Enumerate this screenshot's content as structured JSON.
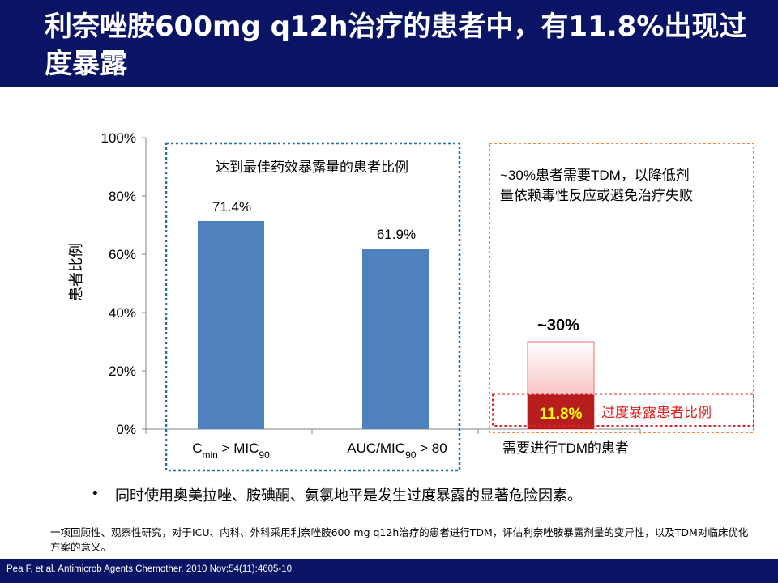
{
  "slide": {
    "title": "利奈唑胺600mg q12h治疗的患者中，有11.8%出现过度暴露",
    "bullet_marker": "•",
    "bullet": "同时使用奥美拉唑、胺碘酮、氨氯地平是发生过度暴露的显著危险因素。",
    "footnote": "一项回顾性、观察性研究，对于ICU、内科、外科采用利奈唑胺600 mg q12h治疗的患者进行TDM，评估利奈唑胺暴露剂量的变异性，以及TDM对临床优化方案的意义。",
    "citation": "Pea F, et al. Antimicrob Agents Chemother. 2010 Nov;54(11):4605-10."
  },
  "chart_data": {
    "type": "bar",
    "ylabel": "患者比例",
    "ylim": [
      0,
      100
    ],
    "yticks": [
      0,
      20,
      40,
      60,
      80,
      100
    ],
    "ytick_labels": [
      "0%",
      "20%",
      "40%",
      "60%",
      "80%",
      "100%"
    ],
    "categories": [
      {
        "label": "C",
        "sub": "min",
        "label_rest": " > MIC",
        "sub2": "90",
        "label_end": ""
      },
      {
        "label": "AUC/MIC",
        "sub": "90",
        "label_rest": " > 80",
        "sub2": "",
        "label_end": ""
      },
      {
        "label": "需要进行TDM的患者",
        "sub": "",
        "label_rest": "",
        "sub2": "",
        "label_end": ""
      }
    ],
    "bars": [
      {
        "value": 71.4,
        "label": "71.4%",
        "color": "#4f81bd"
      },
      {
        "value": 61.9,
        "label": "61.9%",
        "color": "#4f81bd"
      },
      {
        "value": 30,
        "label": "~30%",
        "color": "#f4a0a0",
        "inner_value": 11.8,
        "inner_label": "11.8%",
        "inner_color": "#b81d1d",
        "inner_label_color": "#ffff00"
      }
    ],
    "annotations": {
      "box1": "达到最佳药效暴露量的患者比例",
      "box2_line1": "~30%患者需要TDM，以降低剂",
      "box2_line2": "量依赖毒性反应或避免治疗失败",
      "overexposure": "过度暴露患者比例"
    },
    "colors": {
      "box1_border": "#1f6fa8",
      "box2_border": "#f0883a",
      "overexposure_border": "#d9262b",
      "overexposure_text": "#e02020"
    }
  }
}
